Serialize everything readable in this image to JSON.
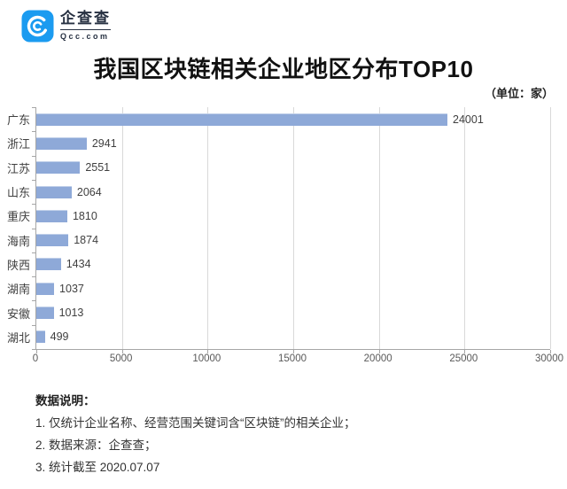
{
  "logo": {
    "name": "企查查",
    "domain": "Qcc.com",
    "brand_color": "#1b9bf0"
  },
  "title": "我国区块链相关企业地区分布TOP10",
  "unit_label": "（单位：家）",
  "chart_data": {
    "type": "bar",
    "orientation": "horizontal",
    "title": "我国区块链相关企业地区分布TOP10",
    "unit": "家",
    "categories": [
      "广东",
      "浙江",
      "江苏",
      "山东",
      "重庆",
      "海南",
      "陕西",
      "湖南",
      "安徽",
      "湖北"
    ],
    "values": [
      24001,
      2941,
      2551,
      2064,
      1810,
      1874,
      1434,
      1037,
      1013,
      499
    ],
    "xlim": [
      0,
      30000
    ],
    "x_ticks": [
      0,
      5000,
      10000,
      15000,
      20000,
      25000,
      30000
    ],
    "grid": true,
    "legend": false,
    "value_labels": true,
    "bar_color": "#8ea9d8",
    "gridline_color": "#d9d9d9",
    "axis_color": "#a6a6a6",
    "label_color": "#404040",
    "tick_label_color": "#595959"
  },
  "notes": {
    "heading": "数据说明：",
    "items": [
      "1. 仅统计企业名称、经营范围关键词含“区块链”的相关企业；",
      "2. 数据来源：企查查；",
      "3. 统计截至 2020.07.07"
    ]
  }
}
